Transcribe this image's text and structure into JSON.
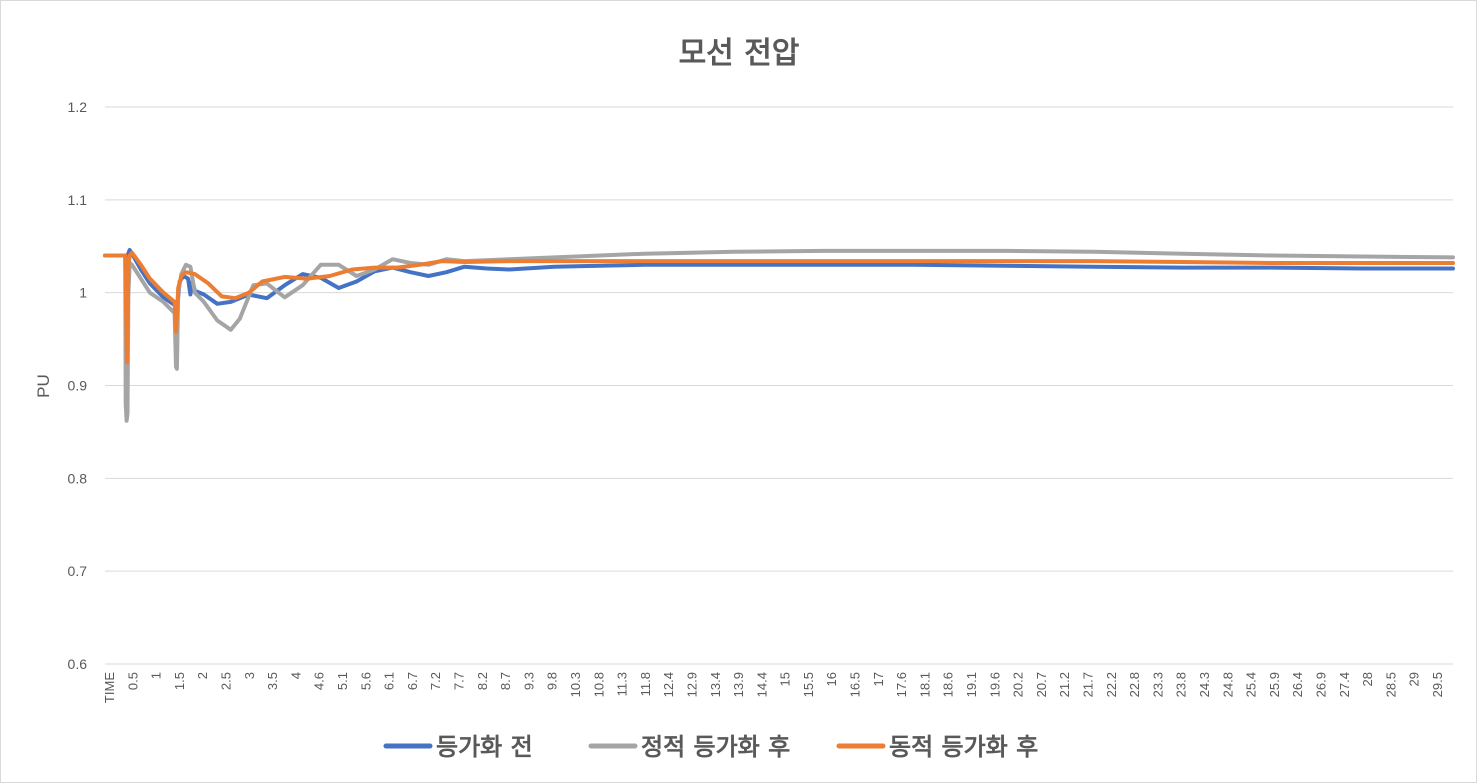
{
  "chart_data": {
    "type": "line",
    "title": "모선 전압",
    "ylabel": "PU",
    "xlabel": "",
    "ylim": [
      0.6,
      1.2
    ],
    "yticks": [
      "0.6",
      "0.7",
      "0.8",
      "0.9",
      "1",
      "1.1",
      "1.2"
    ],
    "grid": true,
    "legend_position": "bottom",
    "xtick_labels": [
      "TIME",
      "0.5",
      "1",
      "1.5",
      "2",
      "2.5",
      "3",
      "3.5",
      "4",
      "4.6",
      "5.1",
      "5.6",
      "6.1",
      "6.7",
      "7.2",
      "7.7",
      "8.2",
      "8.7",
      "9.3",
      "9.8",
      "10.3",
      "10.8",
      "11.3",
      "11.8",
      "12.4",
      "12.9",
      "13.4",
      "13.9",
      "14.4",
      "15",
      "15.5",
      "16",
      "16.5",
      "17",
      "17.6",
      "18.1",
      "18.6",
      "19.1",
      "19.6",
      "20.2",
      "20.7",
      "21.2",
      "21.7",
      "22.2",
      "22.8",
      "23.3",
      "23.8",
      "24.3",
      "24.8",
      "25.4",
      "25.9",
      "26.4",
      "26.9",
      "27.4",
      "28",
      "28.5",
      "29",
      "29.5"
    ],
    "xlim": [
      0,
      30
    ],
    "series": [
      {
        "name": "등가화 전",
        "color": "#4472C4",
        "x": [
          0,
          0.45,
          0.47,
          0.5,
          0.55,
          0.6,
          0.8,
          1.0,
          1.3,
          1.6,
          1.63,
          1.66,
          1.75,
          1.85,
          1.9,
          1.95,
          2.0,
          2.2,
          2.5,
          2.8,
          3.2,
          3.6,
          4.0,
          4.4,
          4.8,
          5.2,
          5.6,
          6.0,
          6.4,
          6.8,
          7.2,
          7.6,
          8.0,
          8.5,
          9.0,
          10,
          11,
          12,
          14,
          16,
          18,
          20,
          22,
          24,
          26,
          28,
          30
        ],
        "values": [
          1.04,
          1.04,
          1.03,
          1.04,
          1.046,
          1.042,
          1.025,
          1.01,
          0.995,
          0.985,
          0.995,
          1.012,
          1.018,
          1.015,
          0.998,
          1.012,
          1.002,
          0.998,
          0.988,
          0.99,
          0.998,
          0.994,
          1.008,
          1.02,
          1.016,
          1.005,
          1.012,
          1.023,
          1.027,
          1.022,
          1.018,
          1.022,
          1.028,
          1.026,
          1.025,
          1.028,
          1.029,
          1.03,
          1.03,
          1.03,
          1.03,
          1.029,
          1.028,
          1.027,
          1.027,
          1.026,
          1.026
        ]
      },
      {
        "name": "정적 등가화 후",
        "color": "#A5A5A5",
        "x": [
          0,
          0.45,
          0.46,
          0.48,
          0.5,
          0.52,
          0.55,
          0.6,
          0.8,
          1.0,
          1.3,
          1.55,
          1.58,
          1.6,
          1.63,
          1.7,
          1.8,
          1.9,
          2.0,
          2.2,
          2.5,
          2.8,
          3.0,
          3.3,
          3.6,
          4.0,
          4.4,
          4.8,
          5.2,
          5.6,
          6.0,
          6.4,
          6.8,
          7.2,
          7.6,
          8.0,
          9.0,
          10,
          12,
          14,
          16,
          18,
          20,
          22,
          24,
          26,
          28,
          30
        ],
        "values": [
          1.04,
          1.04,
          0.88,
          0.862,
          0.87,
          1.0,
          1.032,
          1.03,
          1.015,
          1.0,
          0.99,
          0.978,
          0.92,
          0.918,
          1.0,
          1.02,
          1.03,
          1.028,
          1.0,
          0.99,
          0.97,
          0.96,
          0.972,
          1.008,
          1.01,
          0.995,
          1.008,
          1.03,
          1.03,
          1.018,
          1.025,
          1.036,
          1.032,
          1.03,
          1.036,
          1.034,
          1.036,
          1.038,
          1.042,
          1.044,
          1.045,
          1.045,
          1.045,
          1.044,
          1.042,
          1.04,
          1.039,
          1.038
        ]
      },
      {
        "name": "동적 등가화 후",
        "color": "#ED7D31",
        "x": [
          0,
          0.45,
          0.47,
          0.49,
          0.52,
          0.55,
          0.6,
          0.8,
          1.0,
          1.3,
          1.55,
          1.58,
          1.6,
          1.63,
          1.7,
          1.8,
          2.0,
          2.3,
          2.6,
          2.9,
          3.2,
          3.5,
          4.0,
          4.5,
          5.0,
          5.5,
          6.0,
          6.5,
          7.0,
          7.5,
          8.0,
          9.0,
          10,
          12,
          14,
          16,
          18,
          20,
          22,
          24,
          26,
          28,
          30
        ],
        "values": [
          1.04,
          1.04,
          0.98,
          0.925,
          1.03,
          1.04,
          1.043,
          1.03,
          1.015,
          1.0,
          0.99,
          0.958,
          0.975,
          1.005,
          1.018,
          1.022,
          1.02,
          1.01,
          0.996,
          0.994,
          1.0,
          1.012,
          1.017,
          1.015,
          1.018,
          1.025,
          1.027,
          1.027,
          1.03,
          1.034,
          1.033,
          1.034,
          1.034,
          1.034,
          1.034,
          1.034,
          1.034,
          1.034,
          1.034,
          1.033,
          1.032,
          1.032,
          1.032
        ]
      }
    ]
  }
}
